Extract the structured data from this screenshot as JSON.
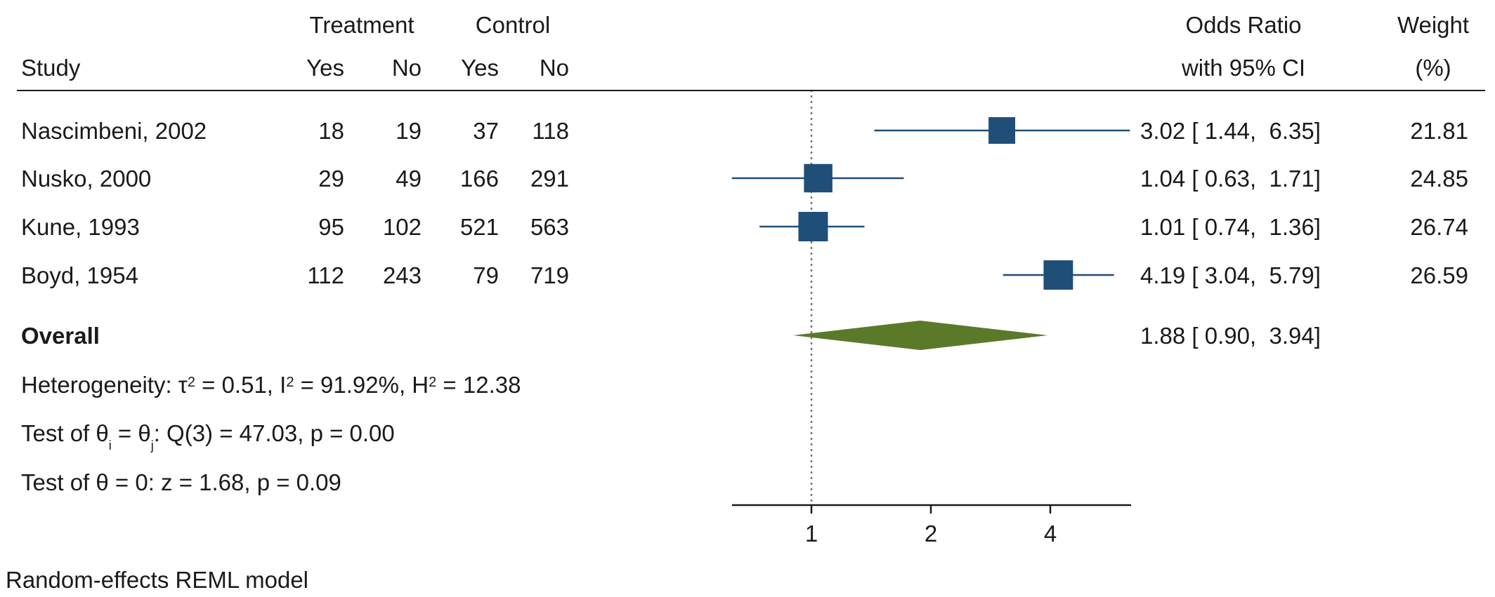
{
  "header": {
    "study": "Study",
    "treatment": "Treatment",
    "control": "Control",
    "yes": "Yes",
    "no": "No",
    "or_line1": "Odds Ratio",
    "or_line2": "with 95% CI",
    "weight_line1": "Weight",
    "weight_line2": "(%)"
  },
  "studies": [
    {
      "name": "Nascimbeni, 2002",
      "t_yes": "18",
      "t_no": "19",
      "c_yes": "37",
      "c_no": "118",
      "or_text": "3.02 [ 1.44,  6.35]",
      "weight": "21.81"
    },
    {
      "name": "Nusko, 2000",
      "t_yes": "29",
      "t_no": "49",
      "c_yes": "166",
      "c_no": "291",
      "or_text": "1.04 [ 0.63,  1.71]",
      "weight": "24.85"
    },
    {
      "name": "Kune, 1993",
      "t_yes": "95",
      "t_no": "102",
      "c_yes": "521",
      "c_no": "563",
      "or_text": "1.01 [ 0.74,  1.36]",
      "weight": "26.74"
    },
    {
      "name": "Boyd, 1954",
      "t_yes": "112",
      "t_no": "243",
      "c_yes": "79",
      "c_no": "719",
      "or_text": "4.19 [ 3.04,  5.79]",
      "weight": "26.59"
    }
  ],
  "overall": {
    "label": "Overall",
    "or_text": "1.88 [ 0.90,  3.94]"
  },
  "heterogeneity": {
    "prefix": "Heterogeneity: τ",
    "tau_sup": "2",
    "tau_val": " = 0.51, I",
    "i_sup": "2",
    "i_val": " = 91.92%, H",
    "h_sup": "2",
    "h_val": " = 12.38"
  },
  "test_q": {
    "p1": "Test of θ",
    "sub_i": "i",
    "p2": " = θ",
    "sub_j": "j",
    "p3": ": Q(3) = 47.03, p = 0.00"
  },
  "test_z": "Test of θ = 0: z = 1.68, p = 0.09",
  "footnote": "Random-effects REML model",
  "colors": {
    "marker": "#1f4e79",
    "line": "#1f4e79",
    "diamond": "#5a7a2a",
    "axis": "#1a1a1a",
    "refline": "#777777"
  },
  "chart_data": {
    "type": "forest",
    "x_scale": "log",
    "x_ticks": [
      1,
      2,
      4
    ],
    "x_tick_labels": [
      "1",
      "2",
      "4"
    ],
    "reference_line": 1,
    "studies": [
      {
        "name": "Nascimbeni, 2002",
        "or": 3.02,
        "lo": 1.44,
        "hi": 6.35,
        "weight": 21.81
      },
      {
        "name": "Nusko, 2000",
        "or": 1.04,
        "lo": 0.63,
        "hi": 1.71,
        "weight": 24.85
      },
      {
        "name": "Kune, 1993",
        "or": 1.01,
        "lo": 0.74,
        "hi": 1.36,
        "weight": 26.74
      },
      {
        "name": "Boyd, 1954",
        "or": 4.19,
        "lo": 3.04,
        "hi": 5.79,
        "weight": 26.59
      }
    ],
    "overall": {
      "or": 1.88,
      "lo": 0.9,
      "hi": 3.94
    }
  }
}
